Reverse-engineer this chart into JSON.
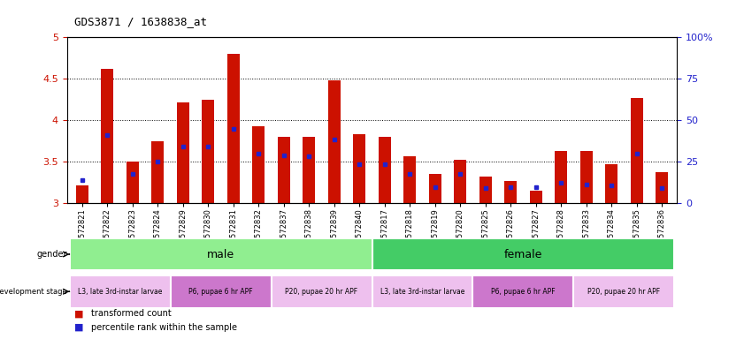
{
  "title": "GDS3871 / 1638838_at",
  "samples": [
    "GSM572821",
    "GSM572822",
    "GSM572823",
    "GSM572824",
    "GSM572829",
    "GSM572830",
    "GSM572831",
    "GSM572832",
    "GSM572837",
    "GSM572838",
    "GSM572839",
    "GSM572840",
    "GSM572817",
    "GSM572818",
    "GSM572819",
    "GSM572820",
    "GSM572825",
    "GSM572826",
    "GSM572827",
    "GSM572828",
    "GSM572833",
    "GSM572834",
    "GSM572835",
    "GSM572836"
  ],
  "red_values": [
    3.22,
    4.62,
    3.5,
    3.75,
    4.22,
    4.25,
    4.8,
    3.93,
    3.8,
    3.8,
    4.48,
    3.83,
    3.8,
    3.57,
    3.35,
    3.52,
    3.32,
    3.27,
    3.15,
    3.63,
    3.63,
    3.47,
    4.27,
    3.38
  ],
  "blue_values": [
    3.28,
    3.82,
    3.35,
    3.5,
    3.68,
    3.68,
    3.9,
    3.6,
    3.58,
    3.57,
    3.77,
    3.47,
    3.47,
    3.35,
    3.2,
    3.35,
    3.19,
    3.2,
    3.2,
    3.25,
    3.23,
    3.22,
    3.6,
    3.19
  ],
  "ylim": [
    3.0,
    5.0
  ],
  "y2lim": [
    0,
    100
  ],
  "yticks": [
    3.0,
    3.5,
    4.0,
    4.5,
    5.0
  ],
  "y2ticks": [
    0,
    25,
    50,
    75,
    100
  ],
  "gender_groups": [
    {
      "label": "male",
      "start": 0,
      "end": 12,
      "color": "#90EE90"
    },
    {
      "label": "female",
      "start": 12,
      "end": 24,
      "color": "#44CC66"
    }
  ],
  "stage_groups": [
    {
      "label": "L3, late 3rd-instar larvae",
      "start": 0,
      "end": 4,
      "color": "#EEC0EE"
    },
    {
      "label": "P6, pupae 6 hr APF",
      "start": 4,
      "end": 8,
      "color": "#CC77CC"
    },
    {
      "label": "P20, pupae 20 hr APF",
      "start": 8,
      "end": 12,
      "color": "#EEC0EE"
    },
    {
      "label": "L3, late 3rd-instar larvae",
      "start": 12,
      "end": 16,
      "color": "#EEC0EE"
    },
    {
      "label": "P6, pupae 6 hr APF",
      "start": 16,
      "end": 20,
      "color": "#CC77CC"
    },
    {
      "label": "P20, pupae 20 hr APF",
      "start": 20,
      "end": 24,
      "color": "#EEC0EE"
    }
  ],
  "bar_color": "#CC1100",
  "dot_color": "#2222CC",
  "bar_width": 0.5,
  "base_value": 3.0,
  "grid_yticks": [
    3.5,
    4.0,
    4.5
  ],
  "ytick_labels": [
    "3",
    "3.5",
    "4",
    "4.5",
    "5"
  ],
  "y2tick_labels": [
    "0",
    "25",
    "50",
    "75",
    "100%"
  ]
}
